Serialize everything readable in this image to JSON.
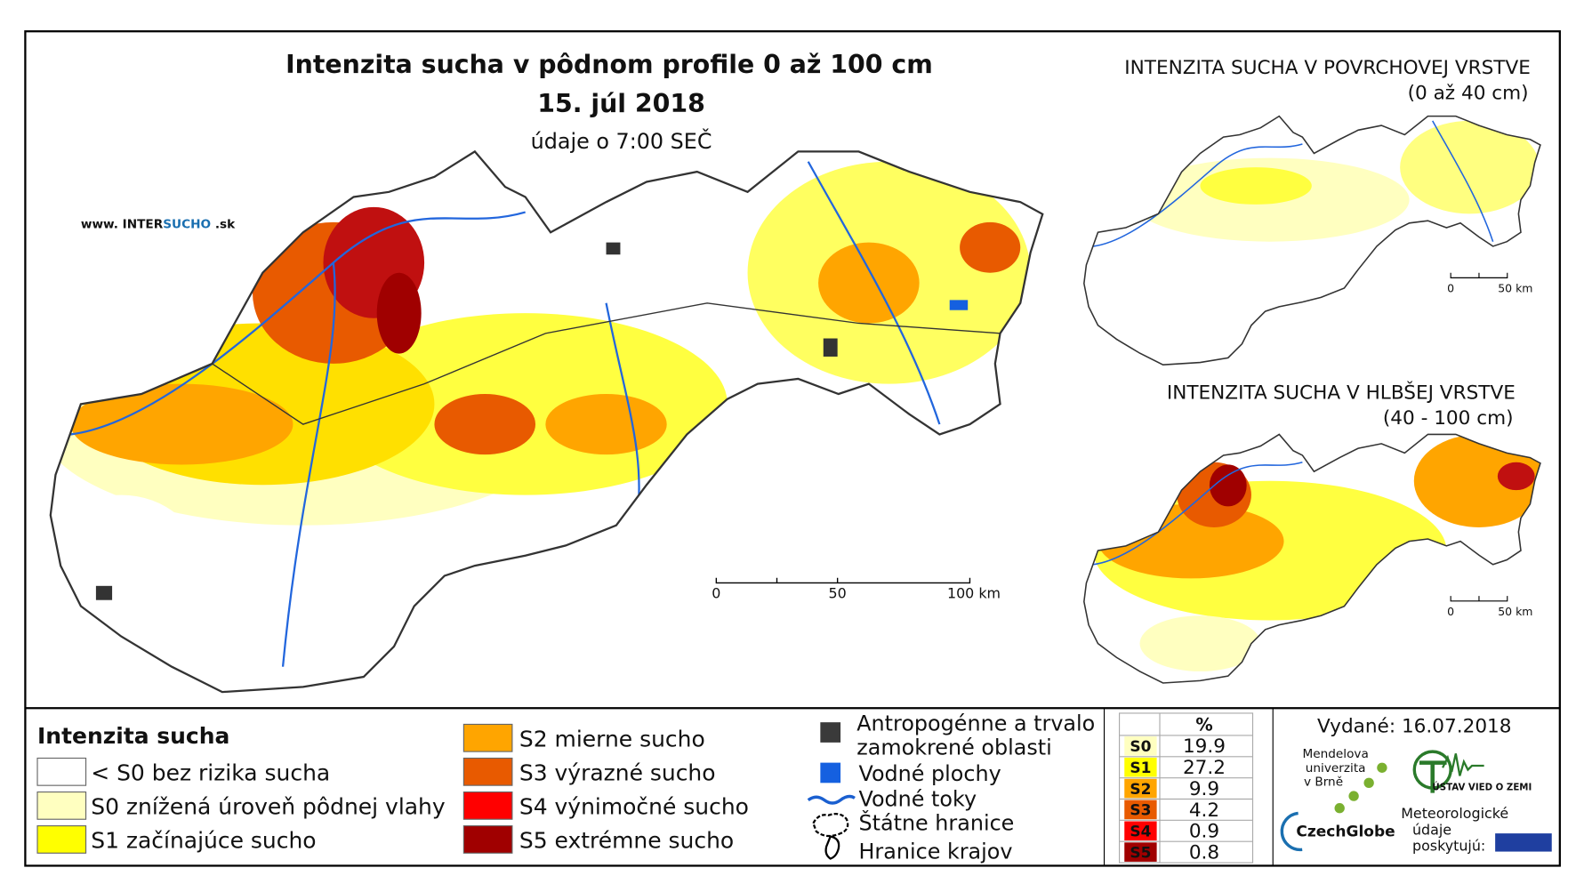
{
  "main_map": {
    "title": "Intenzita sucha v pôdnom profile 0 až 100 cm",
    "date": "15. júl 2018",
    "time_note": "údaje o 7:00 SEČ",
    "website": {
      "prefix": "www. INTER",
      "highlight": "SUCHO",
      "suffix": " .sk"
    },
    "scale": [
      "0",
      "50",
      "100 km"
    ]
  },
  "inset_top": {
    "title": "INTENZITA SUCHA V POVRCHOVEJ VRSTVE",
    "subtitle": "(0 až 40 cm)",
    "scale": [
      "0",
      "50 km"
    ]
  },
  "inset_bottom": {
    "title": "INTENZITA SUCHA V HLBŠEJ VRSTVE",
    "subtitle": "(40 - 100 cm)",
    "scale": [
      "0",
      "50 km"
    ]
  },
  "legend": {
    "title": "Intenzita sucha",
    "items": [
      {
        "label": "< S0 bez rizika sucha",
        "color": "#ffffff"
      },
      {
        "label": "S0 znížená úroveň pôdnej vlahy",
        "color": "#ffffc0"
      },
      {
        "label": "S1 začínajúce sucho",
        "color": "#ffff00"
      },
      {
        "label": "S2 mierne sucho",
        "color": "#ffa500"
      },
      {
        "label": "S3 výrazné sucho",
        "color": "#e85a00"
      },
      {
        "label": "S4 výnimočné sucho",
        "color": "#ff0000"
      },
      {
        "label": "S5 extrémne sucho",
        "color": "#a00000"
      }
    ]
  },
  "symbols": [
    "Antropogénne a trvalo zamokrené oblasti",
    "Vodné plochy",
    "Vodné toky",
    "Štátne hranice",
    "Hranice krajov"
  ],
  "stats": {
    "header": "%",
    "rows": [
      {
        "class": "S0",
        "value": 19.9,
        "color": "#ffffc0"
      },
      {
        "class": "S1",
        "value": 27.2,
        "color": "#ffff00"
      },
      {
        "class": "S2",
        "value": 9.9,
        "color": "#ffa500"
      },
      {
        "class": "S3",
        "value": 4.2,
        "color": "#e85a00"
      },
      {
        "class": "S4",
        "value": 0.9,
        "color": "#ff0000"
      },
      {
        "class": "S5",
        "value": 0.8,
        "color": "#a00000"
      }
    ]
  },
  "issued": "Vydané: 16.07.2018",
  "logos": {
    "mendel": [
      "Mendelova",
      "univerzita",
      "v Brně"
    ],
    "czechglobe": "CzechGlobe",
    "ustav": "ÚSTAV VIED O ZEMI",
    "met": [
      "Meteorologické",
      "údaje",
      "poskytujú:"
    ]
  }
}
